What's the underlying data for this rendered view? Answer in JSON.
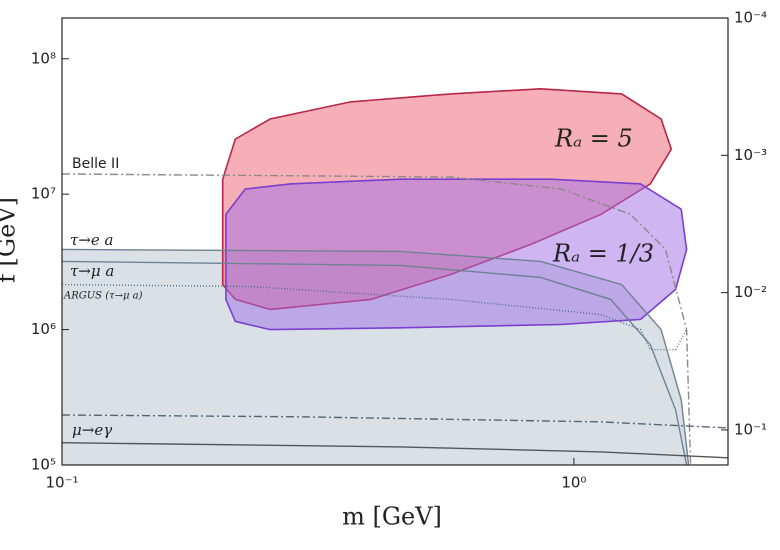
{
  "chart_data": {
    "type": "region",
    "xlabel": "m [GeV]",
    "ylabel": "f [GeV]",
    "xscale": "log",
    "yscale": "log",
    "y2scale": "log",
    "y2_inverted": true,
    "xlim": [
      0.1,
      2
    ],
    "ylim": [
      100000,
      200000000
    ],
    "y2lim": [
      0.0001,
      0.18
    ],
    "xticks": [
      {
        "value": 0.1,
        "label": "10⁻¹"
      },
      {
        "value": 1,
        "label": "10⁰"
      }
    ],
    "yticks": [
      {
        "value": 100000,
        "label": "10⁵"
      },
      {
        "value": 1000000,
        "label": "10⁶"
      },
      {
        "value": 10000000,
        "label": "10⁷"
      },
      {
        "value": 100000000,
        "label": "10⁸"
      }
    ],
    "y2ticks": [
      {
        "value": 0.0001,
        "label": "10⁻⁴"
      },
      {
        "value": 0.001,
        "label": "10⁻³"
      },
      {
        "value": 0.01,
        "label": "10⁻²"
      },
      {
        "value": 0.1,
        "label": "10⁻¹"
      }
    ],
    "regions": [
      {
        "fill": "#c9d3dc",
        "edge": "none",
        "x": [
          0.1,
          0.458,
          0.861,
          1.24,
          1.48,
          1.62,
          1.675,
          0.1
        ],
        "y": [
          3910000,
          3780000,
          3190000,
          2150000,
          1000000,
          303000,
          100000,
          100000
        ]
      },
      {
        "label": "Rₐ = 5",
        "fill": "#f06070",
        "edge": "#b8264a",
        "x": [
          0.206,
          0.206,
          0.218,
          0.255,
          0.366,
          0.574,
          0.861,
          1.24,
          1.48,
          1.55,
          1.41,
          1.13,
          0.824,
          0.574,
          0.401,
          0.255,
          0.218
        ],
        "y": [
          2150000,
          12900000,
          25500000,
          35900000,
          48000000,
          55000000,
          60000000,
          55000000,
          35900000,
          21500000,
          11900000,
          7100000,
          4260000,
          2550000,
          1670000,
          1410000,
          1670000
        ]
      },
      {
        "label": "Rₐ = 1/3",
        "fill": "#a06ee8",
        "edge": "#7a3fd0",
        "x": [
          0.209,
          0.209,
          0.228,
          0.279,
          0.458,
          0.902,
          1.35,
          1.62,
          1.66,
          1.58,
          1.35,
          0.944,
          0.458,
          0.255,
          0.218
        ],
        "y": [
          1670000,
          7100000,
          10900000,
          11900000,
          12900000,
          12900000,
          11900000,
          7740000,
          3910000,
          1980000,
          1190000,
          1090000,
          1030000,
          1000000,
          1150000
        ]
      }
    ],
    "curves": [
      {
        "label": "Belle II",
        "color": "#8a8a8a",
        "dash": "8 3 2 3",
        "x": [
          0.1,
          0.574,
          0.944,
          1.29,
          1.51,
          1.66,
          1.69
        ],
        "y": [
          14100000,
          13400000,
          10900000,
          7100000,
          3910000,
          1000000,
          100000
        ]
      },
      {
        "label": "τ→e a",
        "color": "#6f8294",
        "dash": "none",
        "x": [
          0.1,
          0.458,
          0.861,
          1.24,
          1.48,
          1.62,
          1.675
        ],
        "y": [
          3910000,
          3780000,
          3190000,
          2150000,
          1000000,
          303000,
          100000
        ]
      },
      {
        "label": "τ→μ a",
        "color": "#6f8294",
        "dash": "none",
        "x": [
          0.1,
          0.458,
          0.861,
          1.18,
          1.41,
          1.58,
          1.66
        ],
        "y": [
          3190000,
          2980000,
          2430000,
          1670000,
          774000,
          255000,
          100000
        ]
      },
      {
        "label": "ARGUS (τ→μ a)",
        "color": "#4f6e8c",
        "dash": "1 2",
        "x": [
          0.1,
          0.233,
          0.574,
          1.13,
          1.35,
          1.41,
          1.58,
          1.66
        ],
        "y": [
          2150000,
          2080000,
          1670000,
          1290000,
          1000000,
          710000,
          710000,
          1000000
        ]
      },
      {
        "label": "μ→eγ",
        "color": "#556677",
        "dash": "8 3 2 3",
        "x": [
          0.1,
          0.292,
          1.13,
          2
        ],
        "y": [
          234000,
          227000,
          208000,
          188000
        ]
      },
      {
        "color": "#555555",
        "dash": "none",
        "x": [
          0.1,
          0.458,
          1.13,
          2
        ],
        "y": [
          146000,
          136000,
          125000,
          113000
        ]
      }
    ]
  }
}
